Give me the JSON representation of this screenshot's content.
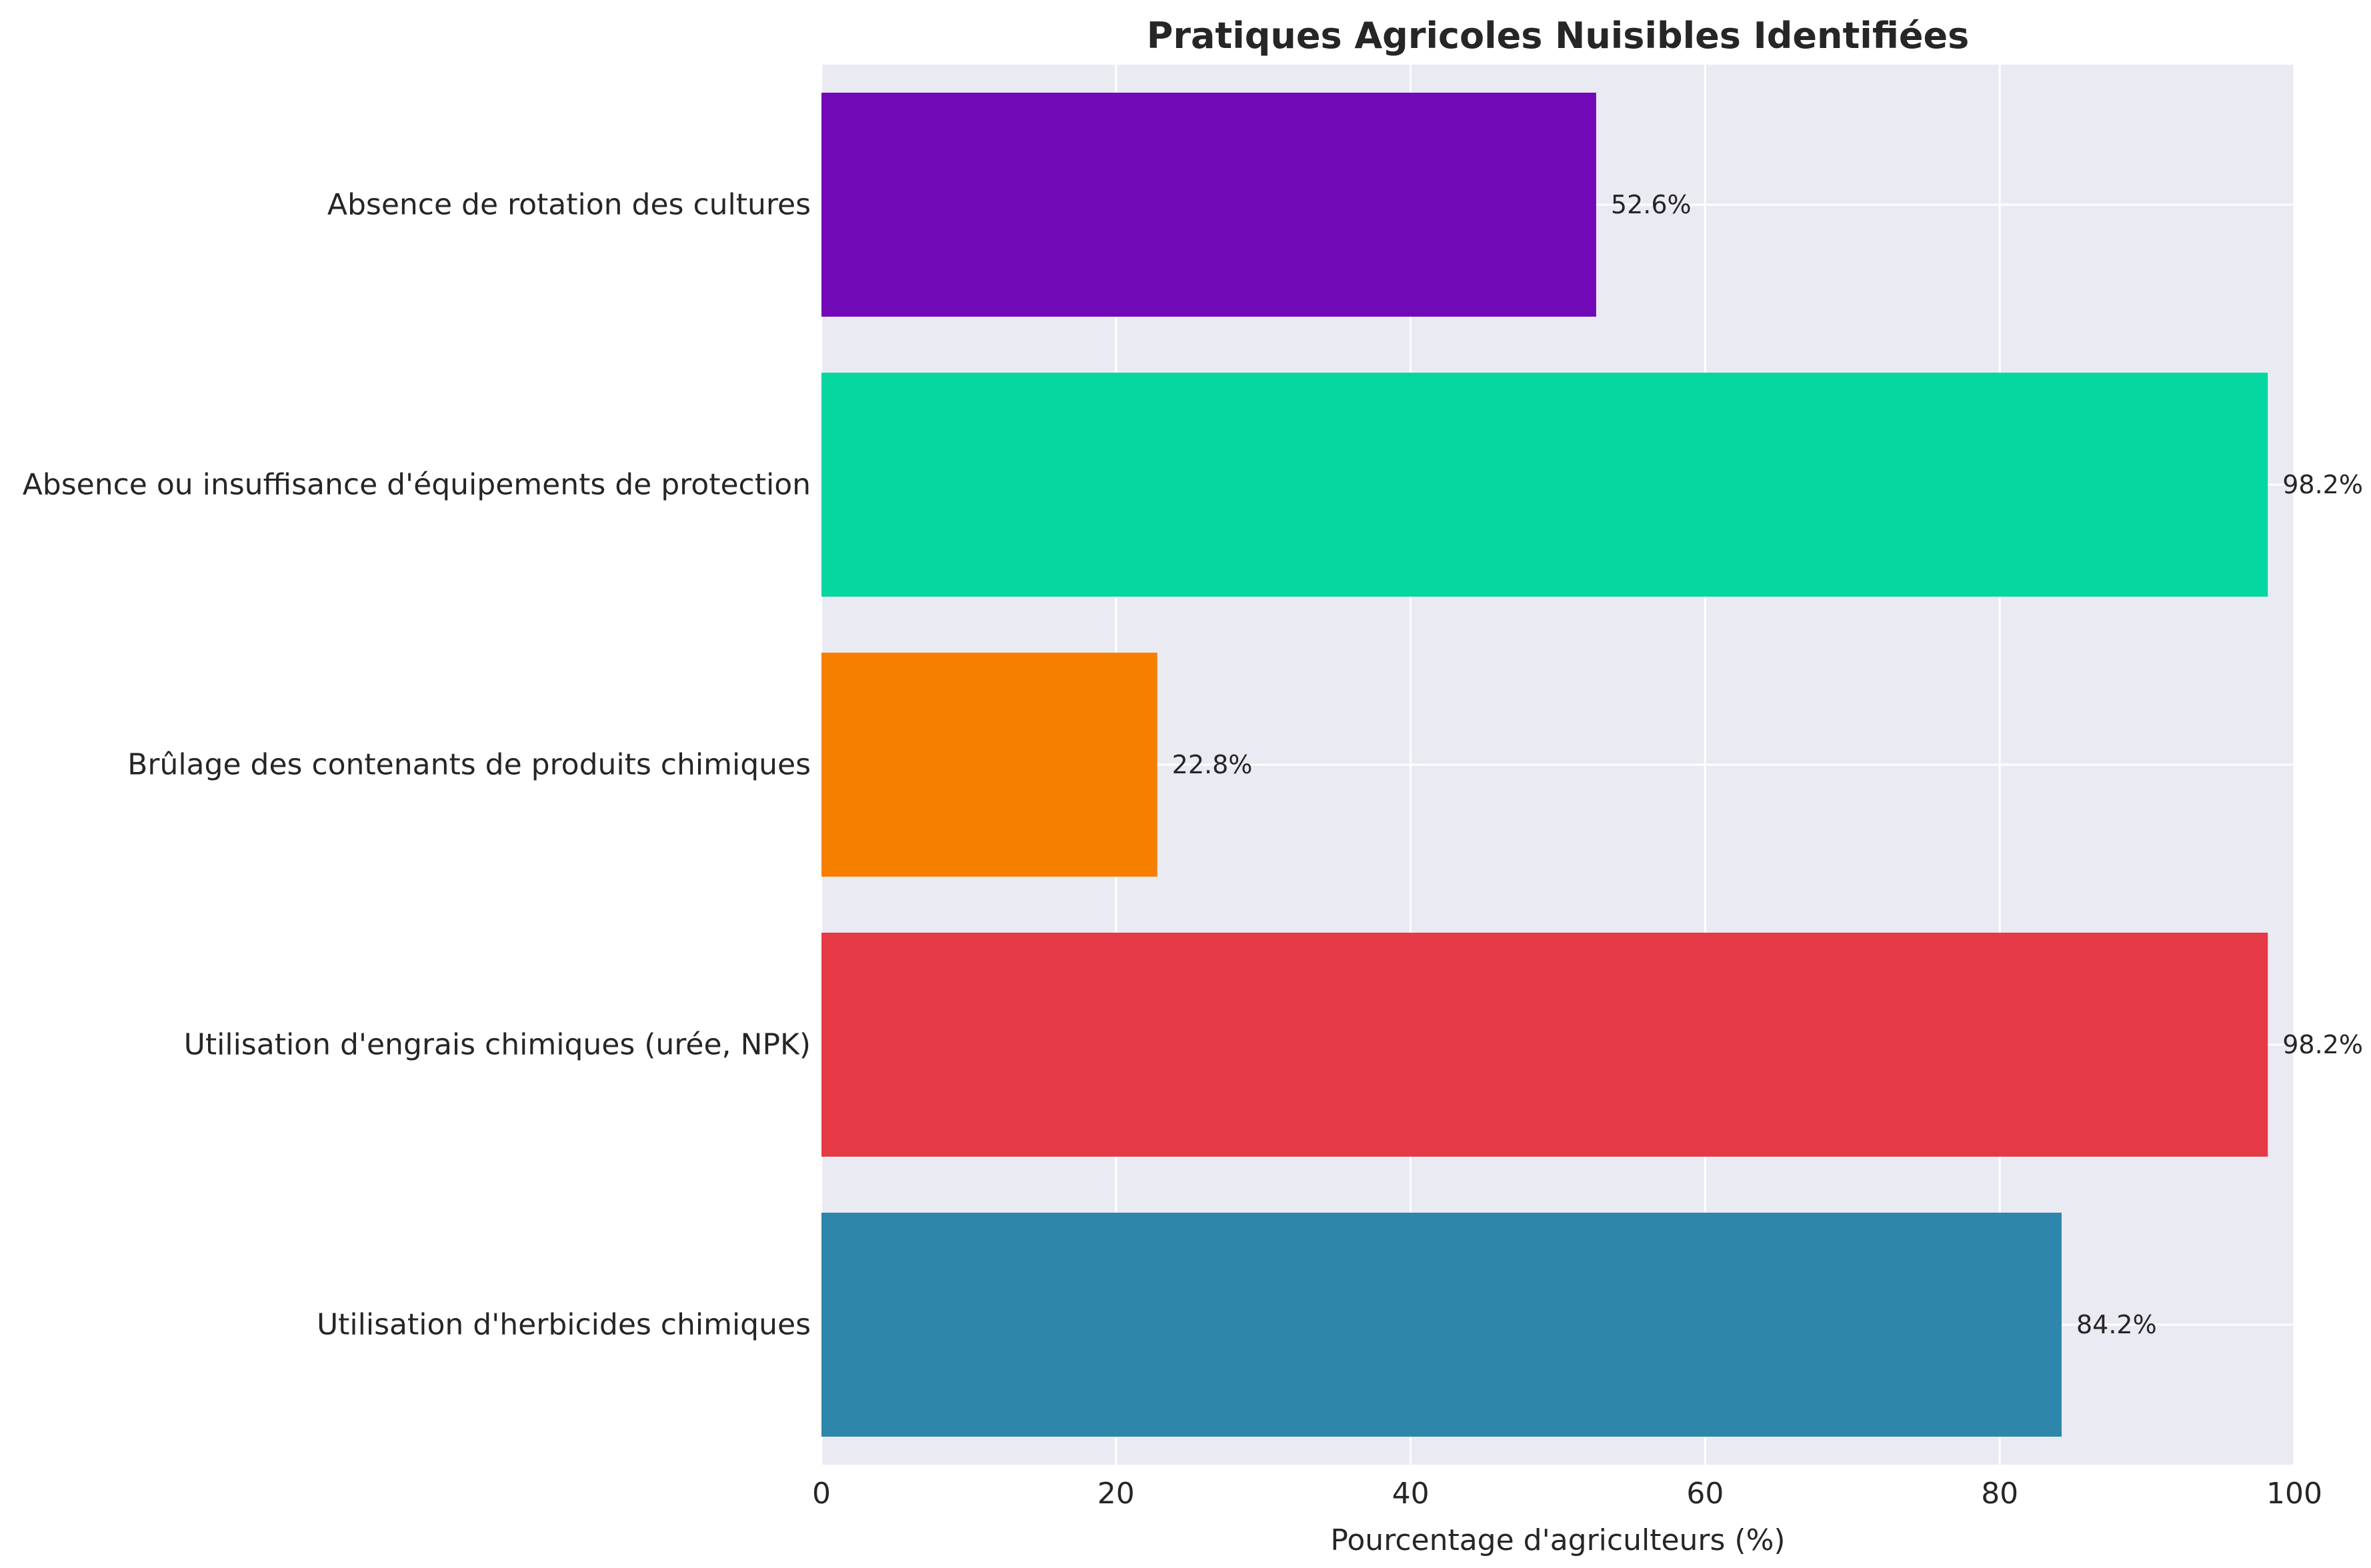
{
  "chart_data": {
    "type": "bar",
    "orientation": "horizontal",
    "title": "Pratiques Agricoles Nuisibles Identifiées",
    "xlabel": "Pourcentage d'agriculteurs (%)",
    "ylabel": "",
    "xlim": [
      0,
      100
    ],
    "xticks": [
      0,
      20,
      40,
      60,
      80,
      100
    ],
    "grid": true,
    "categories": [
      "Utilisation d'herbicides chimiques",
      "Utilisation d'engrais chimiques (urée, NPK)",
      "Brûlage des contenants de produits chimiques",
      "Absence ou insuffisance d'équipements de protection",
      "Absence de rotation des cultures"
    ],
    "values": [
      84.2,
      98.2,
      22.8,
      98.2,
      52.6
    ],
    "value_labels": [
      "84.2%",
      "98.2%",
      "22.8%",
      "98.2%",
      "52.6%"
    ],
    "colors": [
      "#2e86ab",
      "#e63946",
      "#f77f00",
      "#06d6a0",
      "#7209b7"
    ],
    "background_color": "#eaeaf2"
  }
}
